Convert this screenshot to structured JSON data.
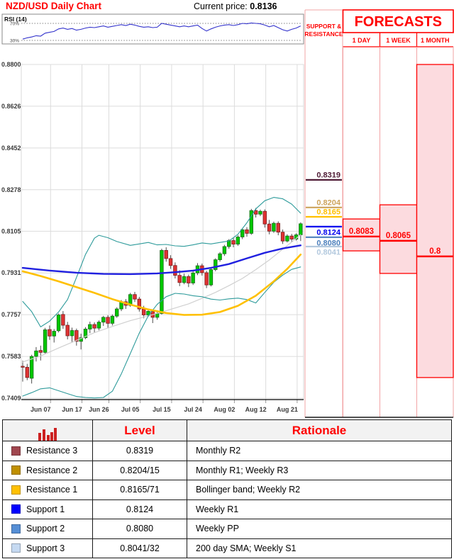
{
  "header": {
    "title": "NZD/USD Daily Chart",
    "current_price_label": "Current price:",
    "current_price": "0.8136"
  },
  "rsi_panel": {
    "label": "RSI (14)",
    "upper_tick": "70%",
    "lower_tick": "30%"
  },
  "sr_panel": {
    "header_line1": "SUPPORT &",
    "header_line2": "RESISTANCE"
  },
  "forecast_panel": {
    "title": "FORECASTS",
    "columns": [
      "1 DAY",
      "1 WEEK",
      "1 MONTH"
    ]
  },
  "chart_data": {
    "type": "candlestick",
    "title": "NZD/USD Daily Chart",
    "current_price": 0.8136,
    "ylim": [
      0.7409,
      0.88
    ],
    "y_ticks": [
      0.88,
      0.8626,
      0.8452,
      0.8278,
      0.8105,
      0.7931,
      0.7757,
      0.7583,
      0.7409
    ],
    "x_labels": [
      {
        "label": "Jun 07",
        "index": 4
      },
      {
        "label": "Jun 17",
        "index": 11
      },
      {
        "label": "Jun 26",
        "index": 17
      },
      {
        "label": "Jul 05",
        "index": 24
      },
      {
        "label": "Jul 15",
        "index": 31
      },
      {
        "label": "Jul 24",
        "index": 38
      },
      {
        "label": "Aug 02",
        "index": 45
      },
      {
        "label": "Aug 12",
        "index": 52
      },
      {
        "label": "Aug 21",
        "index": 59
      }
    ],
    "candles": [
      [
        0.7542,
        0.7565,
        0.7478,
        0.7538
      ],
      [
        0.7538,
        0.7552,
        0.7484,
        0.7495
      ],
      [
        0.7492,
        0.759,
        0.747,
        0.7583
      ],
      [
        0.7583,
        0.7622,
        0.7562,
        0.7606
      ],
      [
        0.7608,
        0.7628,
        0.7566,
        0.76
      ],
      [
        0.76,
        0.7702,
        0.7594,
        0.7694
      ],
      [
        0.7695,
        0.7712,
        0.7652,
        0.7668
      ],
      [
        0.7668,
        0.7697,
        0.7641,
        0.7688
      ],
      [
        0.769,
        0.7762,
        0.7683,
        0.7756
      ],
      [
        0.7758,
        0.7772,
        0.7698,
        0.7713
      ],
      [
        0.7713,
        0.7727,
        0.7654,
        0.7669
      ],
      [
        0.7669,
        0.7703,
        0.7642,
        0.7691
      ],
      [
        0.7691,
        0.7699,
        0.7628,
        0.7646
      ],
      [
        0.7646,
        0.7678,
        0.7612,
        0.7661
      ],
      [
        0.7661,
        0.7705,
        0.7655,
        0.7697
      ],
      [
        0.7697,
        0.7728,
        0.768,
        0.7716
      ],
      [
        0.7716,
        0.7725,
        0.7683,
        0.7701
      ],
      [
        0.7701,
        0.7733,
        0.7692,
        0.7726
      ],
      [
        0.7726,
        0.7752,
        0.771,
        0.7746
      ],
      [
        0.7746,
        0.7755,
        0.7702,
        0.7721
      ],
      [
        0.7721,
        0.7758,
        0.7712,
        0.7751
      ],
      [
        0.7751,
        0.7788,
        0.7744,
        0.7781
      ],
      [
        0.7781,
        0.7818,
        0.7772,
        0.7811
      ],
      [
        0.7811,
        0.7822,
        0.7781,
        0.7796
      ],
      [
        0.7796,
        0.7848,
        0.779,
        0.7841
      ],
      [
        0.7841,
        0.7852,
        0.781,
        0.7822
      ],
      [
        0.7822,
        0.7831,
        0.777,
        0.7781
      ],
      [
        0.7781,
        0.7794,
        0.7742,
        0.7756
      ],
      [
        0.7756,
        0.7782,
        0.7748,
        0.7771
      ],
      [
        0.7771,
        0.7779,
        0.7722,
        0.7746
      ],
      [
        0.7746,
        0.7775,
        0.7736,
        0.7762
      ],
      [
        0.7762,
        0.8032,
        0.7758,
        0.8025
      ],
      [
        0.8025,
        0.8038,
        0.7978,
        0.7991
      ],
      [
        0.7991,
        0.8005,
        0.7948,
        0.7962
      ],
      [
        0.7962,
        0.7975,
        0.7908,
        0.7921
      ],
      [
        0.7921,
        0.7942,
        0.7876,
        0.7891
      ],
      [
        0.7891,
        0.7928,
        0.7884,
        0.7916
      ],
      [
        0.7916,
        0.7924,
        0.7872,
        0.7889
      ],
      [
        0.7889,
        0.794,
        0.7881,
        0.7931
      ],
      [
        0.7931,
        0.7972,
        0.7922,
        0.7961
      ],
      [
        0.7961,
        0.797,
        0.792,
        0.7932
      ],
      [
        0.7932,
        0.794,
        0.7868,
        0.7881
      ],
      [
        0.7881,
        0.7952,
        0.7875,
        0.7945
      ],
      [
        0.7945,
        0.7992,
        0.7938,
        0.7986
      ],
      [
        0.7986,
        0.8018,
        0.7978,
        0.8011
      ],
      [
        0.8011,
        0.8048,
        0.8002,
        0.8041
      ],
      [
        0.8041,
        0.8072,
        0.8032,
        0.8066
      ],
      [
        0.8066,
        0.8076,
        0.8038,
        0.8051
      ],
      [
        0.8051,
        0.8088,
        0.8044,
        0.8081
      ],
      [
        0.8081,
        0.8118,
        0.8072,
        0.8111
      ],
      [
        0.8111,
        0.8122,
        0.8082,
        0.8096
      ],
      [
        0.8096,
        0.8198,
        0.809,
        0.8191
      ],
      [
        0.8191,
        0.8202,
        0.8162,
        0.8176
      ],
      [
        0.8176,
        0.8195,
        0.8168,
        0.8188
      ],
      [
        0.8188,
        0.8196,
        0.812,
        0.8135
      ],
      [
        0.8135,
        0.8152,
        0.8092,
        0.8105
      ],
      [
        0.8105,
        0.8145,
        0.8098,
        0.8138
      ],
      [
        0.8138,
        0.8146,
        0.8088,
        0.8101
      ],
      [
        0.8101,
        0.8112,
        0.8052,
        0.8064
      ],
      [
        0.8064,
        0.8092,
        0.8058,
        0.8085
      ],
      [
        0.8085,
        0.8094,
        0.806,
        0.8072
      ],
      [
        0.8072,
        0.8096,
        0.8066,
        0.809
      ],
      [
        0.809,
        0.8142,
        0.8064,
        0.8136
      ]
    ],
    "overlays": {
      "sma_20": [
        [
          0,
          0.756
        ],
        [
          4,
          0.7585
        ],
        [
          8,
          0.7618
        ],
        [
          12,
          0.765
        ],
        [
          16,
          0.7682
        ],
        [
          20,
          0.7708
        ],
        [
          24,
          0.7732
        ],
        [
          28,
          0.7752
        ],
        [
          31,
          0.7768
        ],
        [
          34,
          0.7785
        ],
        [
          37,
          0.7802
        ],
        [
          40,
          0.7825
        ],
        [
          43,
          0.785
        ],
        [
          46,
          0.7878
        ],
        [
          49,
          0.7908
        ],
        [
          52,
          0.7945
        ],
        [
          55,
          0.7985
        ],
        [
          58,
          0.803
        ],
        [
          60,
          0.806
        ],
        [
          62,
          0.809
        ]
      ],
      "sma_blue": [
        [
          0,
          0.7952
        ],
        [
          6,
          0.7941
        ],
        [
          12,
          0.7932
        ],
        [
          18,
          0.7927
        ],
        [
          24,
          0.7926
        ],
        [
          30,
          0.7929
        ],
        [
          34,
          0.7934
        ],
        [
          38,
          0.7941
        ],
        [
          42,
          0.7952
        ],
        [
          46,
          0.7968
        ],
        [
          50,
          0.7992
        ],
        [
          54,
          0.8015
        ],
        [
          58,
          0.8033
        ],
        [
          62,
          0.8046
        ]
      ],
      "sma_200_yellow": [
        [
          0,
          0.7938
        ],
        [
          4,
          0.7918
        ],
        [
          8,
          0.7896
        ],
        [
          12,
          0.7872
        ],
        [
          16,
          0.7848
        ],
        [
          20,
          0.7822
        ],
        [
          24,
          0.7799
        ],
        [
          28,
          0.7779
        ],
        [
          32,
          0.7764
        ],
        [
          36,
          0.7756
        ],
        [
          40,
          0.7757
        ],
        [
          44,
          0.7768
        ],
        [
          48,
          0.7794
        ],
        [
          52,
          0.7836
        ],
        [
          56,
          0.7896
        ],
        [
          59,
          0.7948
        ],
        [
          62,
          0.8008
        ]
      ],
      "bollinger_upper": [
        [
          0,
          0.7812
        ],
        [
          2,
          0.777
        ],
        [
          4,
          0.7706
        ],
        [
          6,
          0.773
        ],
        [
          8,
          0.7768
        ],
        [
          10,
          0.782
        ],
        [
          12,
          0.7912
        ],
        [
          14,
          0.8008
        ],
        [
          16,
          0.8076
        ],
        [
          17,
          0.8088
        ],
        [
          19,
          0.8078
        ],
        [
          21,
          0.8062
        ],
        [
          24,
          0.8046
        ],
        [
          26,
          0.8052
        ],
        [
          28,
          0.8058
        ],
        [
          30,
          0.8048
        ],
        [
          32,
          0.805
        ],
        [
          34,
          0.8044
        ],
        [
          36,
          0.8042
        ],
        [
          38,
          0.8048
        ],
        [
          40,
          0.8056
        ],
        [
          42,
          0.8052
        ],
        [
          44,
          0.8058
        ],
        [
          46,
          0.8064
        ],
        [
          48,
          0.8092
        ],
        [
          50,
          0.814
        ],
        [
          52,
          0.8198
        ],
        [
          54,
          0.8232
        ],
        [
          56,
          0.8246
        ],
        [
          58,
          0.824
        ],
        [
          60,
          0.8218
        ],
        [
          62,
          0.818
        ]
      ],
      "bollinger_lower": [
        [
          0,
          0.7418
        ],
        [
          2,
          0.7432
        ],
        [
          4,
          0.7448
        ],
        [
          6,
          0.7452
        ],
        [
          8,
          0.744
        ],
        [
          10,
          0.7428
        ],
        [
          12,
          0.7416
        ],
        [
          14,
          0.7412
        ],
        [
          16,
          0.741
        ],
        [
          18,
          0.7412
        ],
        [
          20,
          0.7438
        ],
        [
          22,
          0.751
        ],
        [
          24,
          0.7595
        ],
        [
          26,
          0.768
        ],
        [
          28,
          0.7752
        ],
        [
          30,
          0.78
        ],
        [
          32,
          0.7832
        ],
        [
          34,
          0.7846
        ],
        [
          36,
          0.7843
        ],
        [
          38,
          0.7836
        ],
        [
          40,
          0.7832
        ],
        [
          42,
          0.7822
        ],
        [
          44,
          0.7818
        ],
        [
          46,
          0.7823
        ],
        [
          48,
          0.7826
        ],
        [
          50,
          0.782
        ],
        [
          52,
          0.7806
        ],
        [
          54,
          0.785
        ],
        [
          56,
          0.7892
        ],
        [
          58,
          0.7922
        ],
        [
          60,
          0.7946
        ],
        [
          62,
          0.7956
        ]
      ]
    },
    "rsi": {
      "upper": 70,
      "lower": 30,
      "values": [
        33,
        36,
        38,
        41,
        40,
        47,
        49,
        51,
        57,
        59,
        56,
        58,
        54,
        56,
        59,
        61,
        60,
        62,
        64,
        61,
        63,
        65,
        67,
        65,
        68,
        66,
        63,
        61,
        62,
        60,
        61,
        70,
        68,
        66,
        64,
        62,
        64,
        62,
        64,
        66,
        58,
        52,
        57,
        61,
        64,
        66,
        67,
        65,
        67,
        70,
        69,
        71,
        70,
        69,
        66,
        62,
        65,
        60,
        55,
        52,
        56,
        59,
        64
      ]
    },
    "support_resistance": [
      {
        "label": "0.8319",
        "value": 0.8319,
        "color": "#4F1B35",
        "label_side": "above"
      },
      {
        "label": "0.8204",
        "value": 0.8204,
        "color": "#CDA35B",
        "label_side": "above"
      },
      {
        "label": "0.8165",
        "value": 0.8165,
        "color": "#FFC000",
        "label_side": "above"
      },
      {
        "label": "0.8124",
        "value": 0.8124,
        "color": "#0000EE",
        "label_side": "below"
      },
      {
        "label": "0.8080",
        "value": 0.808,
        "color": "#4E81BD",
        "label_side": "below"
      },
      {
        "label": "0.8041",
        "value": 0.8041,
        "color": "#B3C9DE",
        "label_side": "below"
      }
    ],
    "forecasts": [
      {
        "horizon": "1 DAY",
        "label": "0.8083",
        "value": 0.8083,
        "band": [
          0.8023,
          0.8156
        ]
      },
      {
        "horizon": "1 WEEK",
        "label": "0.8065",
        "value": 0.8065,
        "band": [
          0.7929,
          0.8215
        ]
      },
      {
        "horizon": "1 MONTH",
        "label": "0.8",
        "value": 0.8,
        "band": [
          0.7495,
          0.88
        ]
      }
    ]
  },
  "table": {
    "level_header": "Level",
    "rationale_header": "Rationale",
    "rows": [
      {
        "name": "Resistance 3",
        "swatch": "#A0464E",
        "level": "0.8319",
        "rationale": "Monthly R2"
      },
      {
        "name": "Resistance 2",
        "swatch": "#BF8F00",
        "level": "0.8204/15",
        "rationale": "Monthly R1; Weekly R3"
      },
      {
        "name": "Resistance 1",
        "swatch": "#FFC000",
        "level": "0.8165/71",
        "rationale": "Bollinger band; Weekly R2"
      },
      {
        "name": "Support 1",
        "swatch": "#0000FF",
        "level": "0.8124",
        "rationale": "Weekly R1"
      },
      {
        "name": "Support 2",
        "swatch": "#558ED5",
        "level": "0.8080",
        "rationale": "Weekly PP"
      },
      {
        "name": "Support 3",
        "swatch": "#C5D9F1",
        "level": "0.8041/32",
        "rationale": "200 day SMA; Weekly S1"
      }
    ]
  },
  "colors": {
    "accent_red": "#FF0000",
    "band_pink": "#FCDBDF",
    "panel_border_light": "#F2A4A6",
    "candle_up": "#00C800",
    "candle_down": "#E03232",
    "bollinger": "#2E9B9B",
    "ma_blue": "#2020E0",
    "ma_yellow": "#FFC000",
    "ma_gray": "#D0D0D0",
    "rsi_line": "#3333CC",
    "grid": "#DCDCDC",
    "axis_text": "#3B3B3B"
  }
}
